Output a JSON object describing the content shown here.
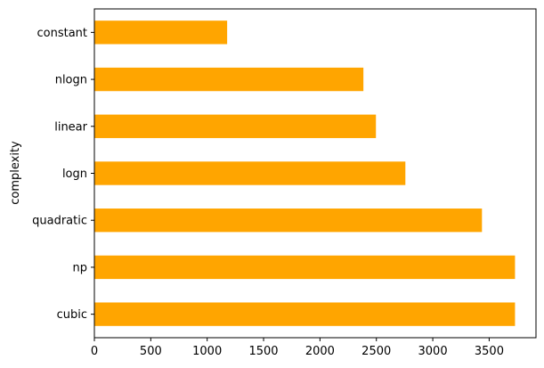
{
  "chart_data": {
    "type": "bar",
    "orientation": "horizontal",
    "categories": [
      "cubic",
      "np",
      "quadratic",
      "logn",
      "linear",
      "nlogn",
      "constant"
    ],
    "values": [
      3729,
      3729,
      3436,
      2757,
      2496,
      2385,
      1177
    ],
    "title": "",
    "xlabel": "",
    "ylabel": "complexity",
    "xlim": [
      0,
      3915
    ],
    "xticks": [
      0,
      500,
      1000,
      1500,
      2000,
      2500,
      3000,
      3500
    ],
    "grid": false,
    "bar_color": "#ffa500"
  }
}
